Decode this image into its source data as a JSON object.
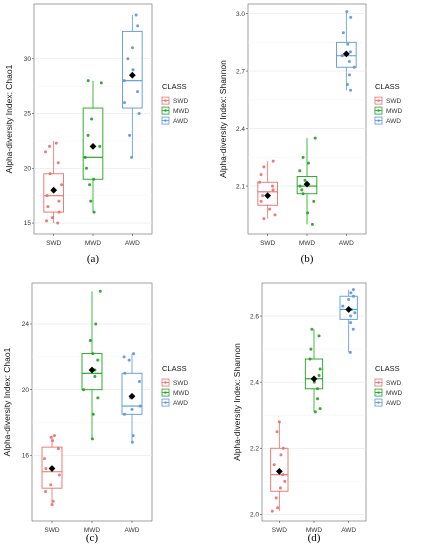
{
  "chart_data": [
    {
      "type": "box",
      "caption": "(a)",
      "ylabel": "Alpha-diversity Index: Chao1",
      "ylim": [
        14,
        35
      ],
      "yticks": [
        15,
        20,
        25,
        30
      ],
      "legend_title": "CLASS",
      "legend_position": "right",
      "categories": [
        "SWD",
        "MWD",
        "AWD"
      ],
      "colors": [
        "#e8706b",
        "#1aa51a",
        "#5a96e0"
      ],
      "series": [
        {
          "name": "SWD",
          "q1": 16,
          "median": 17.5,
          "q3": 19.5,
          "whisker_low": 15,
          "whisker_high": 22.5,
          "mean": 18,
          "points": [
            15,
            15.2,
            15.5,
            16,
            16.5,
            17,
            17.5,
            18.5,
            19.5,
            20.5,
            21.5,
            22,
            22.3
          ]
        },
        {
          "name": "MWD",
          "q1": 19,
          "median": 21,
          "q3": 25.5,
          "whisker_low": 16,
          "whisker_high": 28,
          "mean": 22,
          "points": [
            16,
            17,
            18.5,
            19,
            20,
            21,
            22,
            23,
            24.5,
            27.8,
            28
          ]
        },
        {
          "name": "AWD",
          "q1": 25.5,
          "median": 28,
          "q3": 32.5,
          "whisker_low": 21,
          "whisker_high": 34,
          "mean": 28.5,
          "points": [
            21,
            23,
            25,
            26,
            27,
            28,
            29,
            30,
            31,
            33,
            34
          ]
        }
      ]
    },
    {
      "type": "box",
      "caption": "(b)",
      "ylabel": "Alpha-diversity Index: Shannon",
      "ylim": [
        1.85,
        3.05
      ],
      "yticks": [
        2.1,
        2.4,
        2.7,
        3.0
      ],
      "ytick_labels": [
        "2.1",
        "2.4",
        "2.7",
        "3.0"
      ],
      "legend_title": "CLASS",
      "legend_position": "right",
      "categories": [
        "SWD",
        "MWD",
        "AWD"
      ],
      "colors": [
        "#e8706b",
        "#1aa51a",
        "#5a96e0"
      ],
      "series": [
        {
          "name": "SWD",
          "q1": 2.0,
          "median": 2.07,
          "q3": 2.12,
          "whisker_low": 1.93,
          "whisker_high": 2.23,
          "mean": 2.05,
          "points": [
            1.93,
            1.95,
            1.98,
            2.02,
            2.05,
            2.08,
            2.1,
            2.12,
            2.16,
            2.2,
            2.23
          ]
        },
        {
          "name": "MWD",
          "q1": 2.06,
          "median": 2.1,
          "q3": 2.15,
          "whisker_low": 1.9,
          "whisker_high": 2.35,
          "mean": 2.11,
          "points": [
            1.9,
            1.96,
            2.02,
            2.06,
            2.08,
            2.1,
            2.13,
            2.18,
            2.22,
            2.25,
            2.35
          ]
        },
        {
          "name": "AWD",
          "q1": 2.72,
          "median": 2.78,
          "q3": 2.85,
          "whisker_low": 2.6,
          "whisker_high": 3.01,
          "mean": 2.79,
          "points": [
            2.6,
            2.63,
            2.68,
            2.72,
            2.75,
            2.78,
            2.8,
            2.84,
            2.9,
            2.98,
            3.01
          ]
        }
      ]
    },
    {
      "type": "box",
      "caption": "(c)",
      "ylabel": "Alpha-diversity Index: Chao1",
      "ylim": [
        12,
        26.5
      ],
      "yticks": [
        16,
        20,
        24
      ],
      "legend_title": "CLASS",
      "legend_position": "right",
      "categories": [
        "SWD",
        "MWD",
        "AWD"
      ],
      "colors": [
        "#e8706b",
        "#1aa51a",
        "#5a96e0"
      ],
      "series": [
        {
          "name": "SWD",
          "q1": 14,
          "median": 15,
          "q3": 16.5,
          "whisker_low": 13,
          "whisker_high": 17.2,
          "mean": 15.2,
          "points": [
            13,
            13.2,
            13.8,
            14.2,
            14.8,
            15.2,
            15.8,
            16.4,
            16.9,
            17.1,
            17.2
          ]
        },
        {
          "name": "MWD",
          "q1": 20,
          "median": 21,
          "q3": 22.2,
          "whisker_low": 17,
          "whisker_high": 26,
          "mean": 21.2,
          "points": [
            17,
            18.5,
            19.5,
            20,
            20.8,
            21.2,
            21.8,
            22.2,
            23,
            24,
            26
          ]
        },
        {
          "name": "AWD",
          "q1": 18.5,
          "median": 19,
          "q3": 21,
          "whisker_low": 16.8,
          "whisker_high": 22.2,
          "mean": 19.6,
          "points": [
            16.8,
            17.2,
            18.5,
            18.8,
            19,
            19.5,
            20.5,
            21,
            21.8,
            22,
            22.2
          ]
        }
      ]
    },
    {
      "type": "box",
      "caption": "(d)",
      "ylabel": "Alpha-diversity Index: Shannon",
      "ylim": [
        1.98,
        2.7
      ],
      "yticks": [
        2.0,
        2.2,
        2.4,
        2.6
      ],
      "ytick_labels": [
        "2.0",
        "2.2",
        "2.4",
        "2.6"
      ],
      "legend_title": "CLASS",
      "legend_position": "right",
      "categories": [
        "SWD",
        "MWD",
        "AWD"
      ],
      "colors": [
        "#e8706b",
        "#1aa51a",
        "#5a96e0"
      ],
      "series": [
        {
          "name": "SWD",
          "q1": 2.07,
          "median": 2.12,
          "q3": 2.2,
          "whisker_low": 2.01,
          "whisker_high": 2.28,
          "mean": 2.13,
          "points": [
            2.01,
            2.02,
            2.05,
            2.08,
            2.1,
            2.12,
            2.15,
            2.18,
            2.2,
            2.25,
            2.28
          ]
        },
        {
          "name": "MWD",
          "q1": 2.38,
          "median": 2.41,
          "q3": 2.47,
          "whisker_low": 2.31,
          "whisker_high": 2.56,
          "mean": 2.41,
          "points": [
            2.31,
            2.32,
            2.35,
            2.38,
            2.4,
            2.42,
            2.44,
            2.47,
            2.5,
            2.54,
            2.56
          ]
        },
        {
          "name": "AWD",
          "q1": 2.59,
          "median": 2.62,
          "q3": 2.66,
          "whisker_low": 2.49,
          "whisker_high": 2.68,
          "mean": 2.62,
          "points": [
            2.49,
            2.56,
            2.58,
            2.6,
            2.61,
            2.62,
            2.63,
            2.65,
            2.66,
            2.67,
            2.68
          ]
        }
      ]
    }
  ]
}
